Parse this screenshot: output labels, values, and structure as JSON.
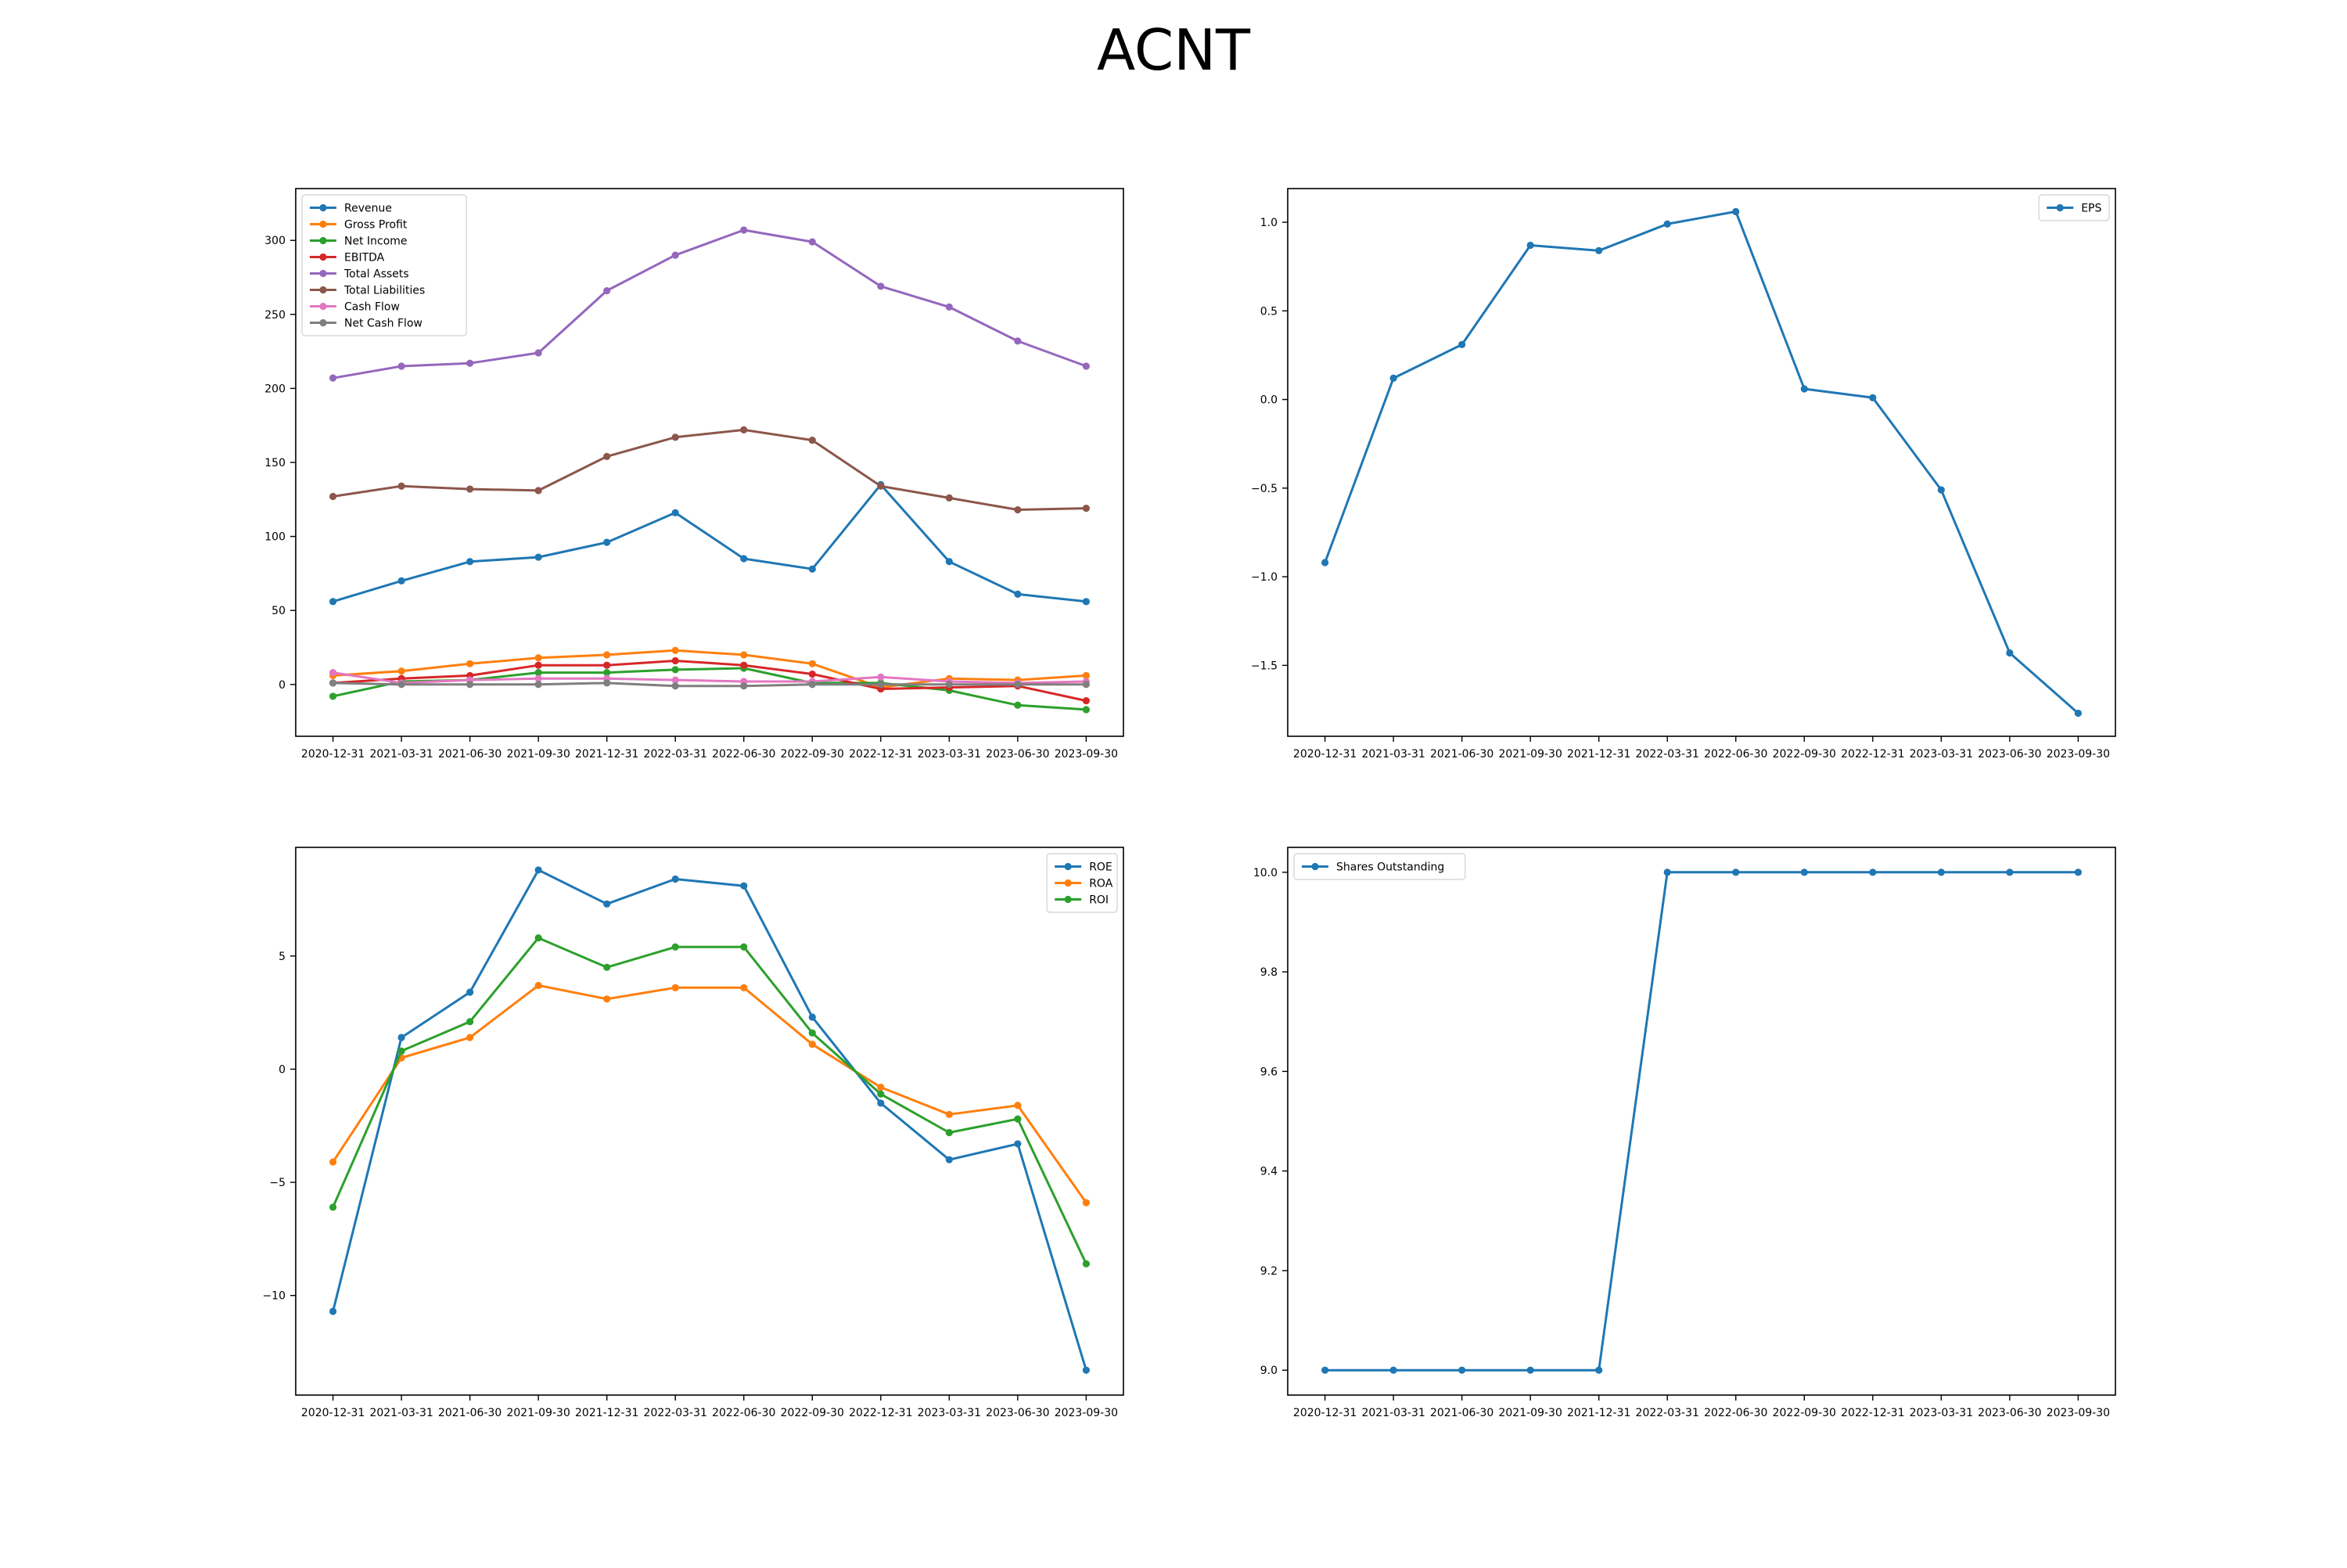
{
  "page": {
    "title": "ACNT"
  },
  "colors": {
    "c0": "#1f77b4",
    "c1": "#ff7f0e",
    "c2": "#2ca02c",
    "c3": "#d62728",
    "c4": "#9467bd",
    "c5": "#8c564b",
    "c6": "#e377c2",
    "c7": "#7f7f7f"
  },
  "chart_data": [
    {
      "id": "financials",
      "type": "line",
      "categories": [
        "2020-12-31",
        "2021-03-31",
        "2021-06-30",
        "2021-09-30",
        "2021-12-31",
        "2022-03-31",
        "2022-06-30",
        "2022-09-30",
        "2022-12-31",
        "2023-03-31",
        "2023-06-30",
        "2023-09-30"
      ],
      "ylim": [
        -35,
        335
      ],
      "yticks": [
        0,
        50,
        100,
        150,
        200,
        250,
        300
      ],
      "grid": false,
      "legend": "upper-left",
      "series": [
        {
          "name": "Revenue",
          "color": "c0",
          "values": [
            56,
            70,
            83,
            86,
            96,
            116,
            85,
            78,
            135,
            83,
            61,
            56
          ]
        },
        {
          "name": "Gross Profit",
          "color": "c1",
          "values": [
            6,
            9,
            14,
            18,
            20,
            23,
            20,
            14,
            -2,
            4,
            3,
            6
          ]
        },
        {
          "name": "Net Income",
          "color": "c2",
          "values": [
            -8,
            2,
            3,
            8,
            8,
            10,
            11,
            1,
            1,
            -4,
            -14,
            -17
          ]
        },
        {
          "name": "EBITDA",
          "color": "c3",
          "values": [
            1,
            4,
            6,
            13,
            13,
            16,
            13,
            7,
            -3,
            -2,
            -1,
            -11
          ]
        },
        {
          "name": "Total Assets",
          "color": "c4",
          "values": [
            207,
            215,
            217,
            224,
            266,
            290,
            307,
            299,
            269,
            255,
            232,
            215
          ]
        },
        {
          "name": "Total Liabilities",
          "color": "c5",
          "values": [
            127,
            134,
            132,
            131,
            154,
            167,
            172,
            165,
            134,
            126,
            118,
            119
          ]
        },
        {
          "name": "Cash Flow",
          "color": "c6",
          "values": [
            8,
            1,
            3,
            4,
            4,
            3,
            2,
            2,
            5,
            2,
            1,
            2
          ]
        },
        {
          "name": "Net Cash Flow",
          "color": "c7",
          "values": [
            1,
            0,
            0,
            0,
            1,
            -1,
            -1,
            0,
            0,
            0,
            0,
            0
          ]
        }
      ]
    },
    {
      "id": "eps",
      "type": "line",
      "categories": [
        "2020-12-31",
        "2021-03-31",
        "2021-06-30",
        "2021-09-30",
        "2021-12-31",
        "2022-03-31",
        "2022-06-30",
        "2022-09-30",
        "2022-12-31",
        "2023-03-31",
        "2023-06-30",
        "2023-09-30"
      ],
      "ylim": [
        -1.9,
        1.19
      ],
      "yticks": [
        -1.5,
        -1.0,
        -0.5,
        0.0,
        0.5,
        1.0
      ],
      "yticklabels": [
        "−1.5",
        "−1.0",
        "−0.5",
        "0.0",
        "0.5",
        "1.0"
      ],
      "grid": false,
      "legend": "upper-right",
      "series": [
        {
          "name": "EPS",
          "color": "c0",
          "values": [
            -0.92,
            0.12,
            0.31,
            0.87,
            0.84,
            0.99,
            1.06,
            0.06,
            0.01,
            -0.51,
            -1.43,
            -1.77
          ]
        }
      ]
    },
    {
      "id": "returns",
      "type": "line",
      "categories": [
        "2020-12-31",
        "2021-03-31",
        "2021-06-30",
        "2021-09-30",
        "2021-12-31",
        "2022-03-31",
        "2022-06-30",
        "2022-09-30",
        "2022-12-31",
        "2023-03-31",
        "2023-06-30",
        "2023-09-30"
      ],
      "ylim": [
        -14.4,
        9.8
      ],
      "yticks": [
        -10,
        -5,
        0,
        5
      ],
      "yticklabels": [
        "−10",
        "−5",
        "0",
        "5"
      ],
      "grid": false,
      "legend": "upper-right",
      "series": [
        {
          "name": "ROE",
          "color": "c0",
          "values": [
            -10.7,
            1.4,
            3.4,
            8.8,
            7.3,
            8.4,
            8.1,
            2.3,
            -1.5,
            -4.0,
            -3.3,
            -13.3
          ]
        },
        {
          "name": "ROA",
          "color": "c1",
          "values": [
            -4.1,
            0.5,
            1.4,
            3.7,
            3.1,
            3.6,
            3.6,
            1.1,
            -0.8,
            -2.0,
            -1.6,
            -5.9
          ]
        },
        {
          "name": "ROI",
          "color": "c2",
          "values": [
            -6.1,
            0.8,
            2.1,
            5.8,
            4.5,
            5.4,
            5.4,
            1.6,
            -1.1,
            -2.8,
            -2.2,
            -8.6
          ]
        }
      ]
    },
    {
      "id": "shares",
      "type": "line",
      "categories": [
        "2020-12-31",
        "2021-03-31",
        "2021-06-30",
        "2021-09-30",
        "2021-12-31",
        "2022-03-31",
        "2022-06-30",
        "2022-09-30",
        "2022-12-31",
        "2023-03-31",
        "2023-06-30",
        "2023-09-30"
      ],
      "ylim": [
        8.95,
        10.05
      ],
      "yticks": [
        9.0,
        9.2,
        9.4,
        9.6,
        9.8,
        10.0
      ],
      "yticklabels": [
        "9.0",
        "9.2",
        "9.4",
        "9.6",
        "9.8",
        "10.0"
      ],
      "grid": false,
      "legend": "upper-left",
      "series": [
        {
          "name": "Shares Outstanding",
          "color": "c0",
          "values": [
            9.0,
            9.0,
            9.0,
            9.0,
            9.0,
            10.0,
            10.0,
            10.0,
            10.0,
            10.0,
            10.0,
            10.0
          ]
        }
      ]
    }
  ]
}
